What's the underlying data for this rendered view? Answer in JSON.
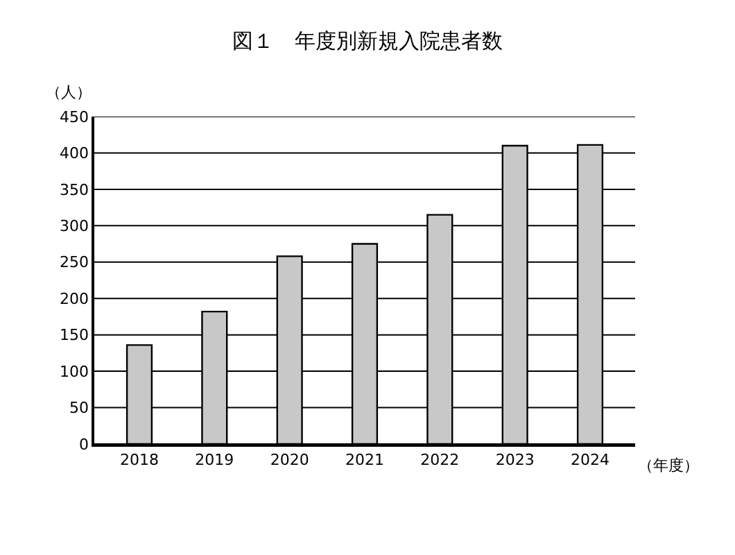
{
  "chart_data": {
    "type": "bar",
    "title": "図１　年度別新規入院患者数",
    "ylabel": "（人）",
    "xlabel": "（年度）",
    "categories": [
      "2018",
      "2019",
      "2020",
      "2021",
      "2022",
      "2023",
      "2024"
    ],
    "values": [
      136,
      182,
      258,
      275,
      315,
      410,
      411
    ],
    "color": "#c8c8c8",
    "ylim": [
      0,
      450
    ],
    "yticks": [
      0,
      50,
      100,
      150,
      200,
      250,
      300,
      350,
      400,
      450
    ],
    "grid": "y"
  }
}
